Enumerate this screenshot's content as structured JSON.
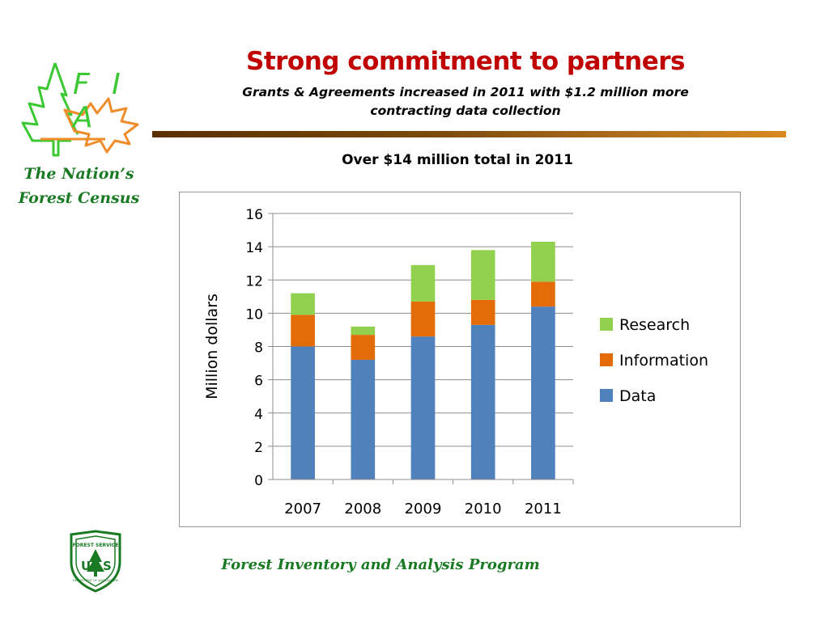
{
  "slide": {
    "logo_text": "F I A",
    "tagline_line1": "The Nation’s",
    "tagline_line2": "Forest Census",
    "title": "Strong commitment to partners",
    "subtitle_line1": "Grants & Agreements increased in 2011 with $1.2 million more",
    "subtitle_line2": "contracting data collection",
    "footer": "Forest Inventory and Analysis Program",
    "shield_text_top": "FOREST SERVICE",
    "shield_text_mid": "US",
    "shield_text_bottom": "DEPARTMENT OF AGRICULTURE",
    "colors": {
      "title": "#c00000",
      "green_text": "#1a7a24",
      "logo_green": "#3cc832",
      "logo_orange": "#f08c2a"
    }
  },
  "chart_data": {
    "type": "bar",
    "stacked": true,
    "title": "Over $14 million total in 2011",
    "ylabel": "Million dollars",
    "xlabel": "",
    "categories": [
      "2007",
      "2008",
      "2009",
      "2010",
      "2011"
    ],
    "ylim": [
      0,
      16
    ],
    "yticks": [
      0,
      2,
      4,
      6,
      8,
      10,
      12,
      14,
      16
    ],
    "grid": true,
    "legend_position": "right",
    "series": [
      {
        "name": "Data",
        "color": "#4f81bd",
        "values": [
          8.0,
          7.2,
          8.6,
          9.3,
          10.4
        ]
      },
      {
        "name": "Information",
        "color": "#e36c09",
        "values": [
          1.9,
          1.5,
          2.1,
          1.5,
          1.5
        ]
      },
      {
        "name": "Research",
        "color": "#92d050",
        "values": [
          1.3,
          0.5,
          2.2,
          3.0,
          2.4
        ]
      }
    ]
  }
}
